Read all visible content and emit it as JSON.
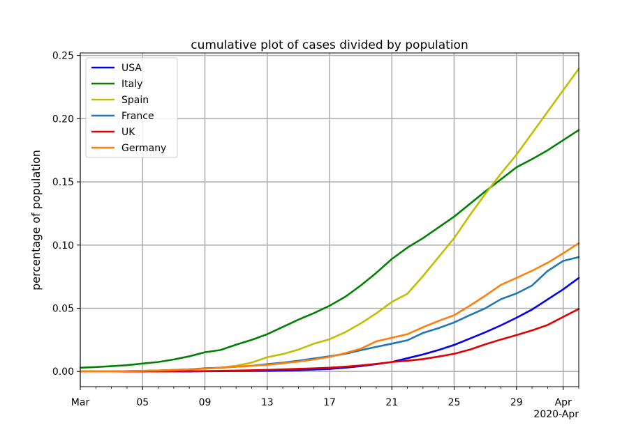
{
  "chart_data": {
    "type": "line",
    "title": "cumulative plot of cases divided by population",
    "xlabel": "",
    "ylabel": "percentage of population",
    "x_dates": [
      "2020-03-01",
      "2020-03-02",
      "2020-03-03",
      "2020-03-04",
      "2020-03-05",
      "2020-03-06",
      "2020-03-07",
      "2020-03-08",
      "2020-03-09",
      "2020-03-10",
      "2020-03-11",
      "2020-03-12",
      "2020-03-13",
      "2020-03-14",
      "2020-03-15",
      "2020-03-16",
      "2020-03-17",
      "2020-03-18",
      "2020-03-19",
      "2020-03-20",
      "2020-03-21",
      "2020-03-22",
      "2020-03-23",
      "2020-03-24",
      "2020-03-25",
      "2020-03-26",
      "2020-03-27",
      "2020-03-28",
      "2020-03-29",
      "2020-03-30",
      "2020-03-31",
      "2020-04-01",
      "2020-04-02"
    ],
    "xlim": [
      "2020-03-01",
      "2020-04-02"
    ],
    "ylim": [
      -0.012,
      0.252
    ],
    "x_ticks": [
      {
        "date": "2020-03-01",
        "label": "Mar"
      },
      {
        "date": "2020-03-05",
        "label": "05"
      },
      {
        "date": "2020-03-09",
        "label": "09"
      },
      {
        "date": "2020-03-13",
        "label": "13"
      },
      {
        "date": "2020-03-17",
        "label": "17"
      },
      {
        "date": "2020-03-21",
        "label": "21"
      },
      {
        "date": "2020-03-25",
        "label": "25"
      },
      {
        "date": "2020-03-29",
        "label": "29"
      },
      {
        "date": "2020-04-01",
        "label": "Apr"
      }
    ],
    "x_offset_label": "2020-Apr",
    "y_ticks": [
      {
        "value": 0.0,
        "label": "0.00"
      },
      {
        "value": 0.05,
        "label": "0.05"
      },
      {
        "value": 0.1,
        "label": "0.10"
      },
      {
        "value": 0.15,
        "label": "0.15"
      },
      {
        "value": 0.2,
        "label": "0.20"
      },
      {
        "value": 0.25,
        "label": "0.25"
      }
    ],
    "grid": true,
    "legend_position": "top-left",
    "series": [
      {
        "name": "USA",
        "color": "#0000ee",
        "values": [
          0.0,
          0.0,
          0.0,
          0.0,
          0.0,
          0.0,
          0.0,
          0.0,
          0.0002,
          0.0003,
          0.0004,
          0.0005,
          0.0006,
          0.0008,
          0.001,
          0.0015,
          0.002,
          0.003,
          0.0042,
          0.0058,
          0.0075,
          0.0105,
          0.0135,
          0.017,
          0.021,
          0.026,
          0.031,
          0.0365,
          0.0425,
          0.049,
          0.057,
          0.065,
          0.074
        ]
      },
      {
        "name": "Italy",
        "color": "#008000",
        "values": [
          0.003,
          0.0035,
          0.0042,
          0.005,
          0.0063,
          0.0075,
          0.0095,
          0.012,
          0.0152,
          0.017,
          0.0212,
          0.025,
          0.0295,
          0.0352,
          0.041,
          0.0462,
          0.052,
          0.059,
          0.068,
          0.078,
          0.089,
          0.098,
          0.1055,
          0.114,
          0.1225,
          0.1325,
          0.1425,
          0.152,
          0.1615,
          0.168,
          0.175,
          0.183,
          0.191
        ]
      },
      {
        "name": "Spain",
        "color": "#bfbf00",
        "values": [
          0.0,
          0.0,
          0.0,
          0.0003,
          0.0005,
          0.0008,
          0.0012,
          0.0017,
          0.0023,
          0.003,
          0.0045,
          0.007,
          0.0113,
          0.0138,
          0.0173,
          0.022,
          0.0255,
          0.031,
          0.038,
          0.046,
          0.055,
          0.0615,
          0.0755,
          0.0905,
          0.1055,
          0.1235,
          0.1405,
          0.1565,
          0.1715,
          0.1885,
          0.2055,
          0.2225,
          0.2395
        ]
      },
      {
        "name": "France",
        "color": "#1f77b4",
        "values": [
          0.0,
          0.0,
          0.0,
          0.0003,
          0.0005,
          0.0008,
          0.0012,
          0.0017,
          0.0025,
          0.003,
          0.0038,
          0.0045,
          0.0058,
          0.007,
          0.0085,
          0.0103,
          0.012,
          0.014,
          0.0168,
          0.0195,
          0.022,
          0.0247,
          0.0305,
          0.0343,
          0.0388,
          0.0445,
          0.05,
          0.0572,
          0.0617,
          0.068,
          0.0795,
          0.0875,
          0.0905
        ]
      },
      {
        "name": "UK",
        "color": "#e00000",
        "values": [
          0.0,
          0.0,
          0.0,
          0.0,
          0.0,
          0.0,
          0.0001,
          0.0002,
          0.0003,
          0.0005,
          0.0007,
          0.001,
          0.0013,
          0.0017,
          0.0021,
          0.0025,
          0.003,
          0.0038,
          0.0048,
          0.006,
          0.0075,
          0.0085,
          0.0098,
          0.0118,
          0.014,
          0.0173,
          0.0215,
          0.0253,
          0.0288,
          0.0325,
          0.0368,
          0.0432,
          0.0495
        ]
      },
      {
        "name": "Germany",
        "color": "#ff7f0e",
        "values": [
          0.0,
          0.0,
          0.0,
          0.0003,
          0.0005,
          0.0008,
          0.0012,
          0.0017,
          0.0022,
          0.003,
          0.0038,
          0.0045,
          0.0052,
          0.0065,
          0.0078,
          0.0095,
          0.0115,
          0.0145,
          0.018,
          0.0238,
          0.0267,
          0.0295,
          0.035,
          0.04,
          0.0445,
          0.052,
          0.06,
          0.0685,
          0.074,
          0.0797,
          0.086,
          0.0935,
          0.1015
        ]
      }
    ]
  }
}
